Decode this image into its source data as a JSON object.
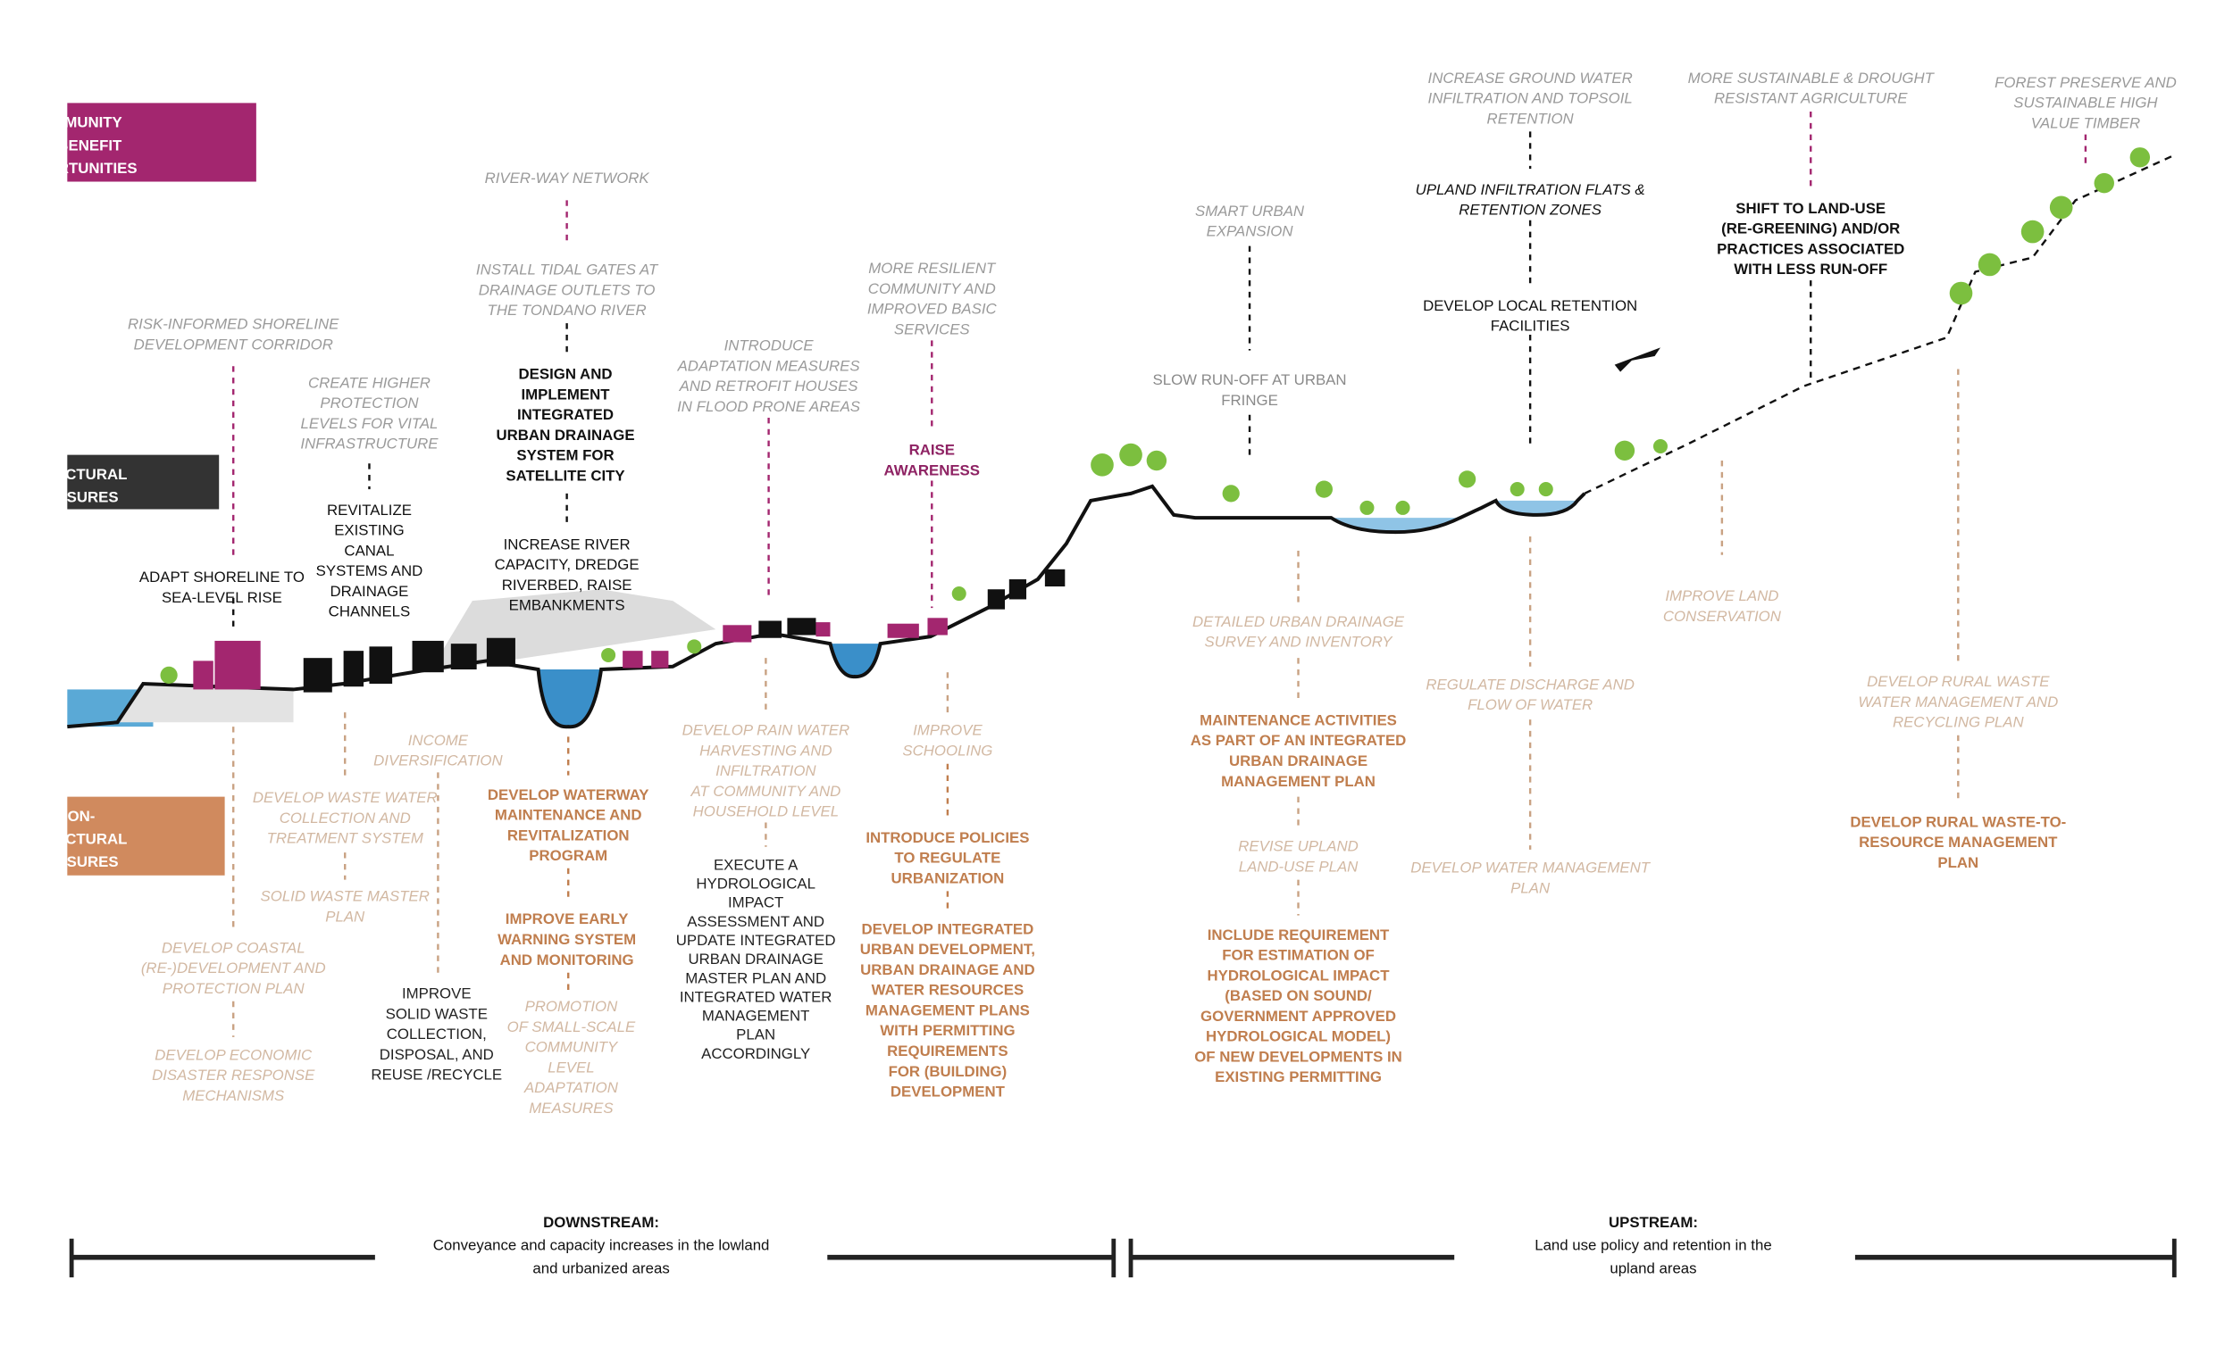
{
  "legend": {
    "community": [
      "COMMUNITY",
      "CO-BENEFIT",
      "OPPORTUNITIES"
    ],
    "structural": [
      "STRUCTURAL",
      "MEASURES"
    ],
    "non_structural": [
      "NON-",
      "STRUCTURAL",
      "MEASURES"
    ]
  },
  "community": [
    [
      "RISK-INFORMED SHORELINE",
      "DEVELOPMENT CORRIDOR"
    ],
    [
      "RIVER-WAY NETWORK"
    ],
    [
      "MORE RESILIENT",
      "COMMUNITY AND",
      "IMPROVED BASIC",
      "SERVICES"
    ],
    [
      "RAISE",
      "AWARENESS"
    ],
    [
      "SMART URBAN",
      "EXPANSION"
    ],
    [
      "INCREASE GROUND WATER",
      "INFILTRATION AND TOPSOIL",
      "RETENTION"
    ],
    [
      "MORE SUSTAINABLE & DROUGHT",
      "RESISTANT AGRICULTURE"
    ],
    [
      "SHIFT TO LAND-USE",
      "(RE-GREENING) AND/OR",
      "PRACTICES ASSOCIATED",
      "WITH LESS RUN-OFF"
    ],
    [
      "FOREST PRESERVE AND",
      "SUSTAINABLE HIGH",
      "VALUE TIMBER"
    ]
  ],
  "structural": [
    [
      "CREATE HIGHER",
      "PROTECTION",
      "LEVELS FOR VITAL",
      "INFRASTRUCTURE"
    ],
    [
      "REVITALIZE",
      "EXISTING",
      "CANAL",
      "SYSTEMS AND",
      "DRAINAGE",
      "CHANNELS"
    ],
    [
      "ADAPT SHORELINE TO",
      "SEA-LEVEL RISE"
    ],
    [
      "INSTALL TIDAL GATES AT",
      "DRAINAGE OUTLETS TO",
      "THE TONDANO RIVER"
    ],
    [
      "DESIGN AND",
      "IMPLEMENT",
      "INTEGRATED",
      "URBAN DRAINAGE",
      "SYSTEM FOR",
      "SATELLITE CITY"
    ],
    [
      "INCREASE RIVER",
      "CAPACITY, DREDGE",
      "RIVERBED, RAISE",
      "EMBANKMENTS"
    ],
    [
      "INTRODUCE",
      "ADAPTATION MEASURES",
      "AND RETROFIT HOUSES",
      "IN FLOOD PRONE AREAS"
    ],
    [
      "SLOW RUN-OFF AT URBAN",
      "FRINGE"
    ],
    [
      "UPLAND INFILTRATION  FLATS &",
      "RETENTION ZONES"
    ],
    [
      "DEVELOP LOCAL RETENTION",
      "FACILITIES"
    ]
  ],
  "non_structural": [
    [
      "INCOME",
      "DIVERSIFICATION"
    ],
    [
      "DEVELOP WASTE WATER",
      "COLLECTION AND",
      "TREATMENT SYSTEM"
    ],
    [
      "SOLID WASTE MASTER",
      "PLAN"
    ],
    [
      "DEVELOP COASTAL",
      "(RE-)DEVELOPMENT AND",
      "PROTECTION PLAN"
    ],
    [
      "DEVELOP ECONOMIC",
      "DISASTER RESPONSE",
      "MECHANISMS"
    ],
    [
      "IMPROVE",
      "SOLID WASTE",
      "COLLECTION,",
      "DISPOSAL, AND",
      "REUSE /RECYCLE"
    ],
    [
      "DEVELOP WATERWAY",
      "MAINTENANCE AND",
      "REVITALIZATION",
      "PROGRAM"
    ],
    [
      "IMPROVE EARLY",
      "WARNING SYSTEM",
      "AND MONITORING"
    ],
    [
      "PROMOTION",
      "OF SMALL-SCALE",
      "COMMUNITY",
      "LEVEL",
      "ADAPTATION",
      "MEASURES"
    ],
    [
      "DEVELOP RAIN WATER",
      "HARVESTING AND",
      "INFILTRATION",
      "AT COMMUNITY AND",
      "HOUSEHOLD LEVEL"
    ],
    [
      "EXECUTE A",
      "HYDROLOGICAL",
      "IMPACT",
      "ASSESSMENT AND",
      "UPDATE INTEGRATED",
      "URBAN DRAINAGE",
      "MASTER PLAN AND",
      "INTEGRATED WATER",
      "MANAGEMENT",
      "PLAN",
      "ACCORDINGLY"
    ],
    [
      "IMPROVE",
      "SCHOOLING"
    ],
    [
      "INTRODUCE POLICIES",
      "TO REGULATE",
      "URBANIZATION"
    ],
    [
      "DEVELOP INTEGRATED",
      "URBAN DEVELOPMENT,",
      "URBAN DRAINAGE AND",
      "WATER RESOURCES",
      "MANAGEMENT PLANS",
      "WITH PERMITTING",
      "REQUIREMENTS",
      "FOR (BUILDING)",
      "DEVELOPMENT"
    ],
    [
      "DETAILED URBAN DRAINAGE",
      "SURVEY AND INVENTORY"
    ],
    [
      "MAINTENANCE ACTIVITIES",
      "AS PART OF AN INTEGRATED",
      "URBAN DRAINAGE",
      "MANAGEMENT PLAN"
    ],
    [
      "REVISE UPLAND",
      "LAND-USE PLAN"
    ],
    [
      "INCLUDE REQUIREMENT",
      "FOR ESTIMATION OF",
      "HYDROLOGICAL IMPACT",
      "(BASED ON SOUND/",
      "GOVERNMENT APPROVED",
      "HYDROLOGICAL MODEL)",
      "OF NEW DEVELOPMENTS IN",
      "EXISTING PERMITTING"
    ],
    [
      "IMPROVE LAND",
      "CONSERVATION"
    ],
    [
      "REGULATE DISCHARGE AND",
      "FLOW OF WATER"
    ],
    [
      "DEVELOP WATER MANAGEMENT",
      "PLAN"
    ],
    [
      "DEVELOP RURAL WASTE",
      "WATER MANAGEMENT AND",
      "RECYCLING PLAN"
    ],
    [
      "DEVELOP RURAL WASTE-TO-",
      "RESOURCE MANAGEMENT",
      "PLAN"
    ]
  ],
  "downstream": {
    "title": "DOWNSTREAM:",
    "lines": [
      "Conveyance and capacity increases in the lowland",
      "and urbanized areas"
    ]
  },
  "upstream": {
    "title": "UPSTREAM:",
    "lines": [
      "Land use policy and retention in the",
      "upland areas"
    ]
  }
}
